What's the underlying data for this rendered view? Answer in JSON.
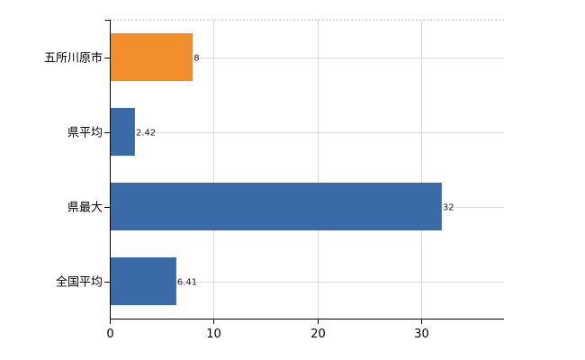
{
  "chart_data": {
    "type": "bar",
    "orientation": "horizontal",
    "categories": [
      "五所川原市",
      "県平均",
      "県最大",
      "全国平均"
    ],
    "values": [
      8,
      2.42,
      32,
      6.41
    ],
    "value_labels": [
      "8",
      "2.42",
      "32",
      "6.41"
    ],
    "bar_colors": [
      "#f28e2b",
      "#3a6aa8",
      "#3a6aa8",
      "#3a6aa8"
    ],
    "xlim": [
      0,
      38
    ],
    "x_ticks": [
      0,
      10,
      20,
      30
    ],
    "x_tick_labels": [
      "0",
      "10",
      "20",
      "30"
    ],
    "grid": true,
    "title": "",
    "xlabel": "",
    "ylabel": ""
  }
}
